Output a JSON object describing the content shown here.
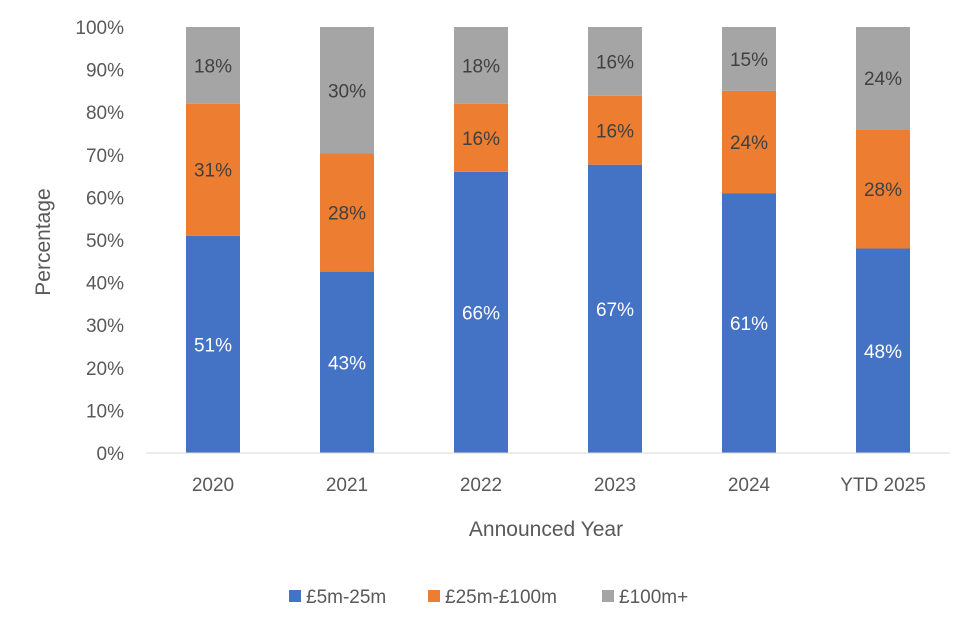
{
  "chart_data": {
    "type": "bar",
    "stacked": true,
    "percent_stacked": true,
    "categories": [
      "2020",
      "2021",
      "2022",
      "2023",
      "2024",
      "YTD 2025"
    ],
    "series": [
      {
        "name": "£5m-25m",
        "color": "#4472C4",
        "values": [
          51,
          43,
          66,
          67,
          61,
          48
        ]
      },
      {
        "name": "£25m-£100m",
        "color": "#ED7D31",
        "values": [
          31,
          28,
          16,
          16,
          24,
          28
        ]
      },
      {
        "name": "£100m+",
        "color": "#A5A5A5",
        "values": [
          18,
          30,
          18,
          16,
          15,
          24
        ]
      }
    ],
    "xlabel": "Announced Year",
    "ylabel": "Percentage",
    "ylim": [
      0,
      100
    ],
    "yticks": [
      "0%",
      "10%",
      "20%",
      "30%",
      "40%",
      "50%",
      "60%",
      "70%",
      "80%",
      "90%",
      "100%"
    ],
    "grid": false,
    "legend": "bottom",
    "data_label_suffix": "%"
  }
}
